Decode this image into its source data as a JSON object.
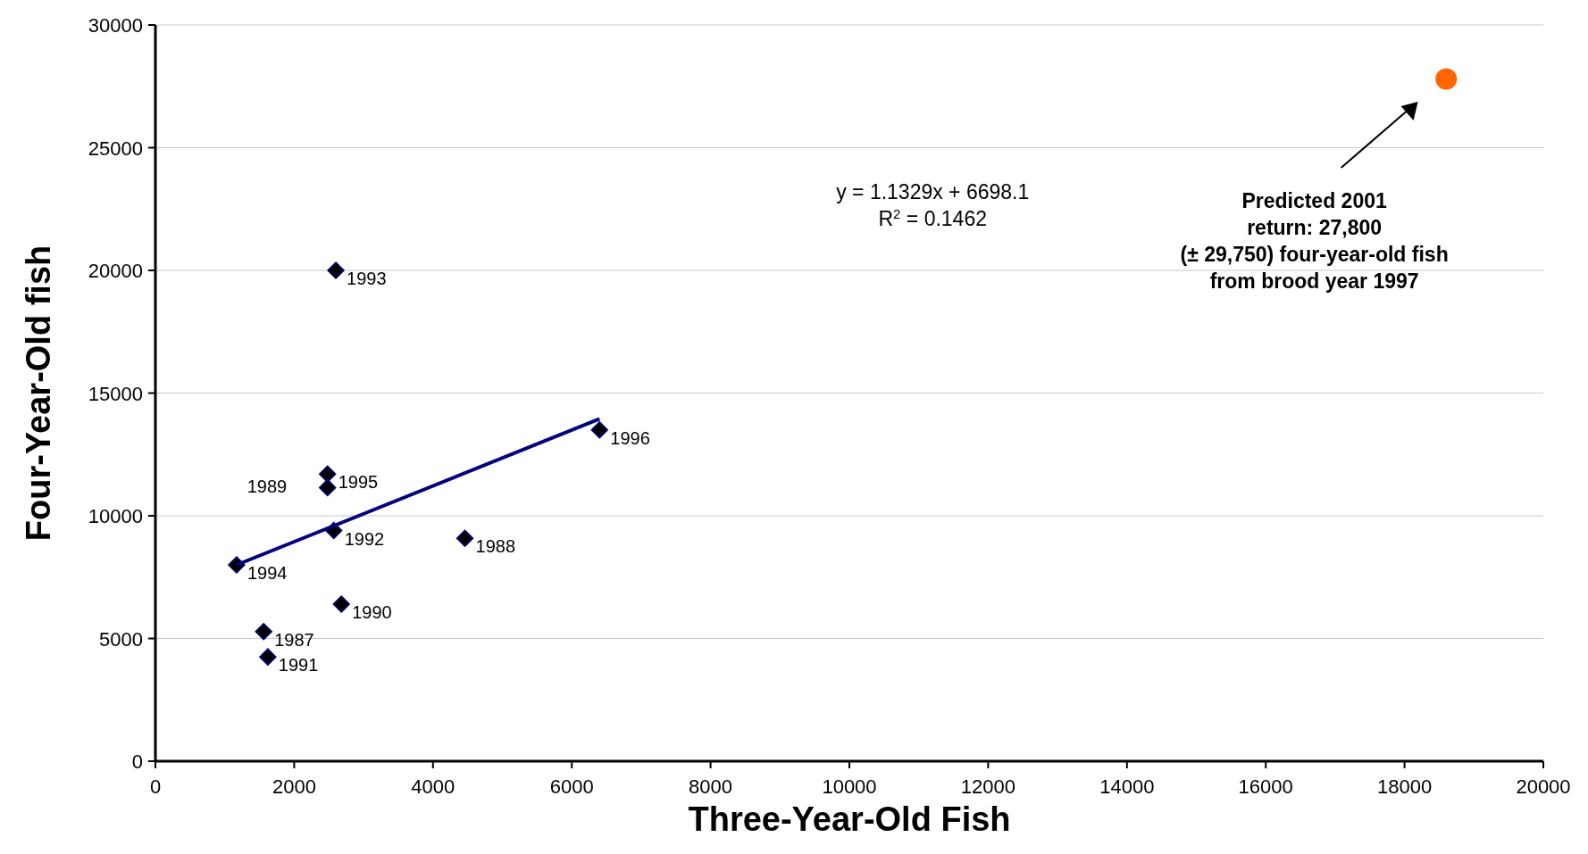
{
  "chart_data": {
    "type": "scatter",
    "xlabel": "Three-Year-Old Fish",
    "ylabel": "Four-Year-Old fish",
    "xlim": [
      0,
      20000
    ],
    "xticks": [
      0,
      2000,
      4000,
      6000,
      8000,
      10000,
      12000,
      14000,
      16000,
      18000,
      20000
    ],
    "ylim": [
      0,
      30000
    ],
    "yticks": [
      0,
      5000,
      10000,
      15000,
      20000,
      25000,
      30000
    ],
    "grid": "y",
    "series": [
      {
        "marker": "diamond",
        "color": "#000000",
        "x": [
          1560,
          4460,
          2480,
          2680,
          1620,
          2570,
          2600,
          1170,
          2480,
          6400
        ],
        "values": [
          5280,
          9080,
          11150,
          6400,
          4250,
          9400,
          20000,
          8000,
          11700,
          13500
        ]
      },
      {
        "type": "line",
        "marker": "none",
        "color": "#000080",
        "x": [
          1170,
          6400
        ],
        "values": [
          8000,
          13950
        ]
      },
      {
        "marker": "circle",
        "color": "#ff6600",
        "x": [
          18600
        ],
        "values": [
          27800
        ]
      }
    ],
    "annotations": [
      {
        "text": "1987",
        "x": 1560,
        "y": 5280
      },
      {
        "text": "1988",
        "x": 4460,
        "y": 9080
      },
      {
        "text": "1989",
        "x": 2480,
        "y": 11150
      },
      {
        "text": "1990",
        "x": 2680,
        "y": 6400
      },
      {
        "text": "1991",
        "x": 1620,
        "y": 4250
      },
      {
        "text": "1992",
        "x": 2570,
        "y": 9400
      },
      {
        "text": "1993",
        "x": 2600,
        "y": 20000
      },
      {
        "text": "1994",
        "x": 1170,
        "y": 8000
      },
      {
        "text": "1995",
        "x": 2480,
        "y": 11700
      },
      {
        "text": "1996",
        "x": 6400,
        "y": 13500
      },
      "y = 1.1329x + 6698.1",
      "R$^{2}$ = 0.1462",
      "Predicted 2001\nreturn: 27,800\n(± 29,750) four-year-old fish\nfrom brood year 1997"
    ]
  }
}
